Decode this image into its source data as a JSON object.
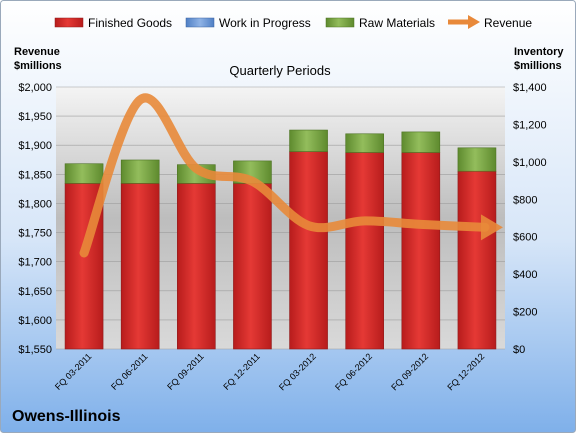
{
  "company": "Owens-Illinois",
  "colors": {
    "finished_goods": "#d32f2f",
    "work_in_progress": "#6f9ad6",
    "raw_materials": "#7da34a",
    "revenue": "#e8893a",
    "background_top": "#ffffff",
    "background_bottom": "#7fb0ea"
  },
  "chart_data": {
    "type": "bar",
    "stacked": true,
    "title": "Quarterly Periods",
    "ylabel_left": "Revenue $millions",
    "ylabel_left_lines": [
      "Revenue",
      "$millions"
    ],
    "ylabel_right": "Inventory $millions",
    "ylabel_right_lines": [
      "Inventory",
      "$millions"
    ],
    "categories": [
      "FQ 03-2011",
      "FQ 06-2011",
      "FQ 09-2011",
      "FQ 12-2011",
      "FQ 03-2012",
      "FQ 06-2012",
      "FQ 09-2012",
      "FQ 12-2012"
    ],
    "series": [
      {
        "name": "Finished Goods",
        "type": "bar",
        "axis": "right",
        "values": [
          885,
          885,
          885,
          885,
          1055,
          1050,
          1050,
          950
        ]
      },
      {
        "name": "Work in Progress",
        "type": "bar",
        "axis": "right",
        "values": [
          0,
          0,
          0,
          0,
          0,
          0,
          0,
          0
        ]
      },
      {
        "name": "Raw Materials",
        "type": "bar",
        "axis": "right",
        "values": [
          105,
          125,
          100,
          120,
          115,
          100,
          110,
          125
        ]
      },
      {
        "name": "Revenue",
        "type": "line",
        "axis": "left",
        "values": [
          1715,
          1978,
          1860,
          1838,
          1762,
          1770,
          1764,
          1759
        ]
      }
    ],
    "ylim_left": [
      1550,
      2000
    ],
    "yticks_left": [
      "$1,550",
      "$1,600",
      "$1,650",
      "$1,700",
      "$1,750",
      "$1,800",
      "$1,850",
      "$1,900",
      "$1,950",
      "$2,000"
    ],
    "ylim_right": [
      0,
      1400
    ],
    "yticks_right": [
      "$0",
      "$200",
      "$400",
      "$600",
      "$800",
      "$1,000",
      "$1,200",
      "$1,400"
    ],
    "legend": [
      "Finished Goods",
      "Work in Progress",
      "Raw Materials",
      "Revenue"
    ],
    "legend_position": "top",
    "grid": true
  }
}
